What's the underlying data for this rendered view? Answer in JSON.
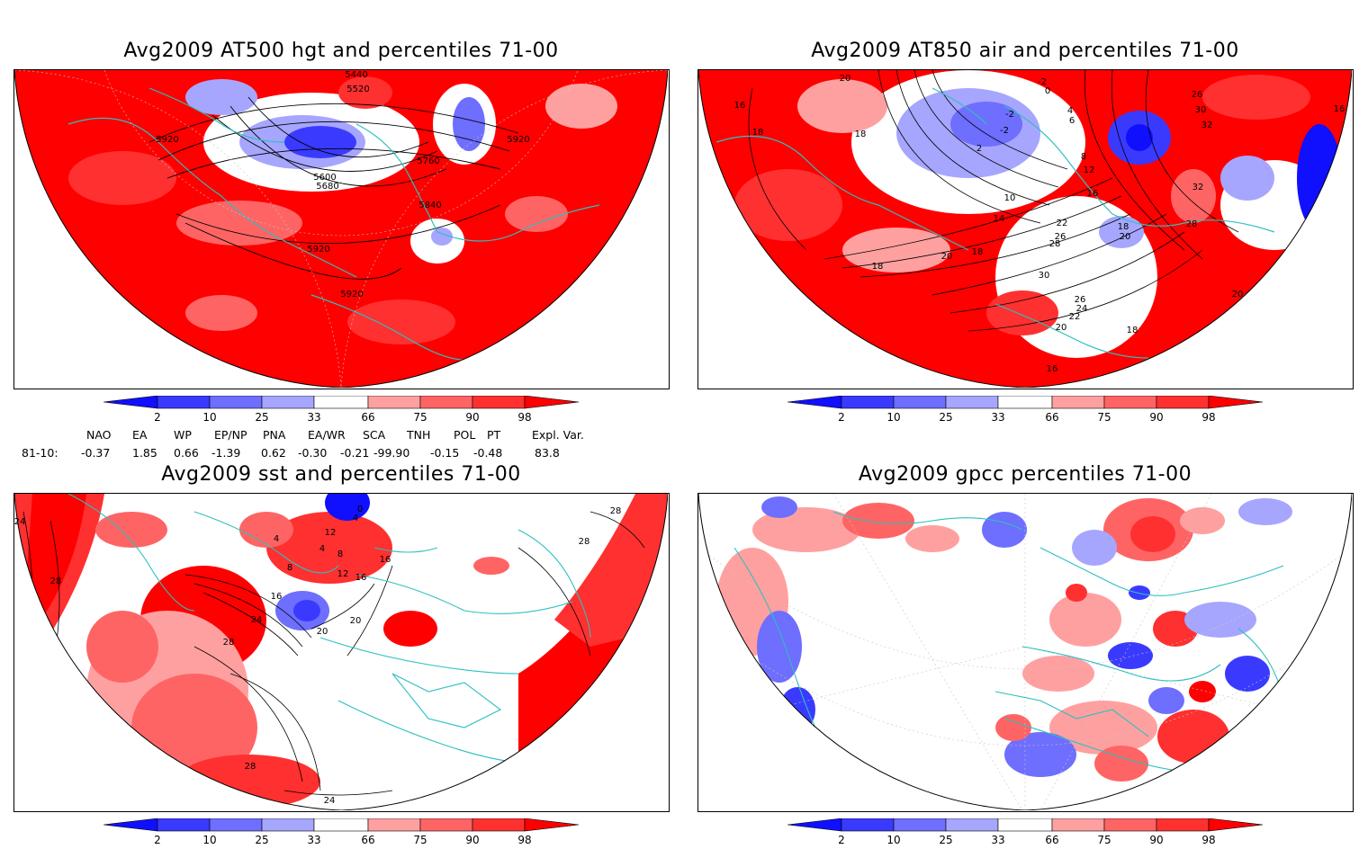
{
  "panels": [
    {
      "id": "tl",
      "title": "Avg2009 AT500 hgt and percentiles 71-00",
      "contour_labels": [
        "5440",
        "5520",
        "5920",
        "5600",
        "5680",
        "5760",
        "5840",
        "5920",
        "5920",
        "5920"
      ]
    },
    {
      "id": "tr",
      "title": "Avg2009 AT850 air and percentiles 71-00",
      "contour_labels": [
        "20",
        "-2",
        "0",
        "-2",
        "16",
        "18",
        "26",
        "30",
        "4",
        "6",
        "18",
        "-2",
        "32",
        "2",
        "8",
        "12",
        "32",
        "10",
        "16",
        "14",
        "18",
        "22",
        "26",
        "20",
        "28",
        "18",
        "20",
        "18",
        "28",
        "30",
        "26",
        "24",
        "22",
        "20",
        "18",
        "16",
        "20",
        "16"
      ]
    },
    {
      "id": "bl",
      "title": "Avg2009 sst and percentiles 71-00",
      "contour_labels": [
        "24",
        "28",
        "4",
        "8",
        "12",
        "16",
        "16",
        "4",
        "8",
        "12",
        "4",
        "0",
        "28",
        "28",
        "16",
        "24",
        "20",
        "20",
        "28",
        "28",
        "24"
      ]
    },
    {
      "id": "br",
      "title": "Avg2009 gpcc percentiles 71-00",
      "contour_labels": []
    }
  ],
  "colorbar": {
    "labels": [
      "2",
      "10",
      "25",
      "33",
      "66",
      "75",
      "90",
      "98"
    ],
    "colors": {
      "below_2": "#1010ff",
      "c2_10": "#3a3aff",
      "c10_25": "#6e6eff",
      "c25_33": "#a6a6ff",
      "neutral": "#ffffff",
      "c66_75": "#ffa0a0",
      "c75_90": "#ff6464",
      "c90_98": "#ff3030",
      "above_98": "#ff0000"
    }
  },
  "indices": {
    "headers": [
      "NAO",
      "EA",
      "WP",
      "EP/NP",
      "PNA",
      "EA/WR",
      "SCA",
      "TNH",
      "POL",
      "PT",
      "Expl. Var."
    ],
    "row_label": "81-10:",
    "values": [
      "-0.37",
      "1.85",
      "0.66",
      "-1.39",
      "0.62",
      "-0.30",
      "-0.21",
      "-99.90",
      "-0.15",
      "-0.48",
      "83.8"
    ]
  },
  "map_colors": {
    "coast": "#2ebfbf",
    "contour": "#000000",
    "grid": "#c8c8c8"
  }
}
